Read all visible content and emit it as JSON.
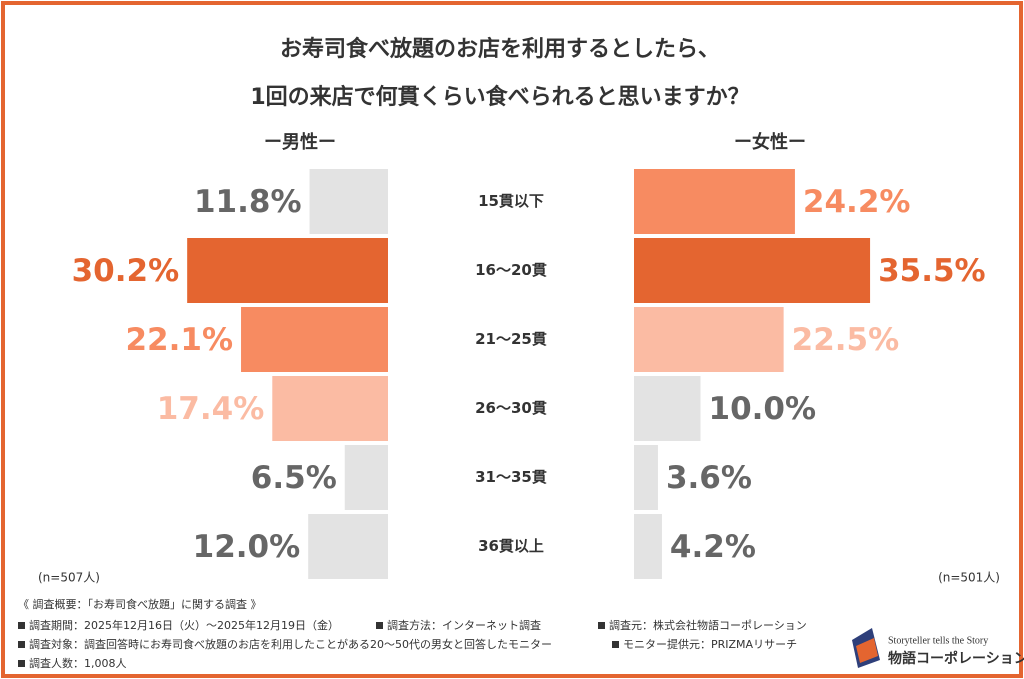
{
  "chart_data": {
    "type": "butterfly",
    "title": [
      "お寿司食べ放題のお店を利用するとしたら、",
      "1回の来店で何貫くらい食べられると思いますか？"
    ],
    "categories": [
      "15貫以下",
      "16～20貫",
      "21～25貫",
      "26～30貫",
      "31～35貫",
      "36貫以上"
    ],
    "series": [
      {
        "name": "ー男性ー",
        "note": "(n=507人)",
        "values": [
          11.8,
          30.2,
          22.1,
          17.4,
          6.5,
          12.0
        ],
        "value_labels": [
          "11.8%",
          "30.2%",
          "22.1%",
          "17.4%",
          "6.5%",
          "12.0%"
        ],
        "colors": [
          "#e3e3e3",
          "#e46530",
          "#f78b61",
          "#fbbba3",
          "#e3e3e3",
          "#e3e3e3"
        ],
        "label_colors": [
          "#666666",
          "#e46530",
          "#f78b61",
          "#fbbba3",
          "#666666",
          "#666666"
        ]
      },
      {
        "name": "ー女性ー",
        "note": "(n=501人)",
        "values": [
          24.2,
          35.5,
          22.5,
          10.0,
          3.6,
          4.2
        ],
        "value_labels": [
          "24.2%",
          "35.5%",
          "22.5%",
          "10.0%",
          "3.6%",
          "4.2%"
        ],
        "colors": [
          "#f78b61",
          "#e46530",
          "#fbbba3",
          "#e3e3e3",
          "#e3e3e3",
          "#e3e3e3"
        ],
        "label_colors": [
          "#f78b61",
          "#e46530",
          "#fbbba3",
          "#666666",
          "#666666",
          "#666666"
        ]
      }
    ]
  },
  "survey": {
    "heading": "《 調査概要：「お寿司食べ放題」に関する調査 》",
    "items": [
      "調査期間：2025年12月16日（火）～2025年12月19日（金）",
      "調査方法：インターネット調査",
      "調査元：株式会社物語コーポレーション",
      "調査対象：調査回答時にお寿司食べ放題のお店を利用したことがある20～50代の男女と回答したモニター",
      "モニター提供元：PRIZMAリサーチ",
      "調査人数：1,008人"
    ]
  },
  "logo": {
    "tagline": "Storyteller tells the Story",
    "name": "物語コーポレーション"
  }
}
